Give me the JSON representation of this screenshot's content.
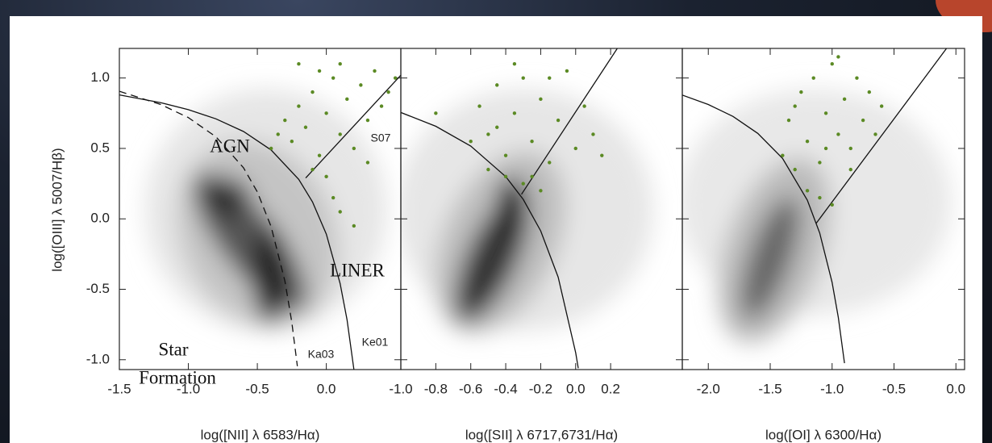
{
  "chart_data": [
    {
      "type": "scatter",
      "y_label": "log([OIII] λ 5007/Hβ)",
      "x_label": "log([NII] λ 6583/Hα)",
      "xlim": [
        -1.5,
        0.54
      ],
      "ylim": [
        -1.07,
        1.21
      ],
      "xticks": [
        -1.5,
        {
          "value": -1.0,
          "label": "-1.0"
        },
        -0.5,
        {
          "value": 0,
          "label": "0.0"
        }
      ],
      "yticks": [
        {
          "value": -1.0,
          "label": "-1.0"
        },
        -0.5,
        {
          "value": 0,
          "label": "0.0"
        },
        0.5,
        {
          "value": 1.0,
          "label": "1.0"
        }
      ],
      "series": [
        {
          "color": "#5b8a24",
          "x": [
            -0.35,
            -0.3,
            -0.25,
            -0.2,
            -0.15,
            -0.1,
            -0.05,
            0.0,
            0.05,
            0.1,
            0.15,
            0.2,
            0.25,
            0.3,
            0.35,
            0.4,
            0.45,
            -0.1,
            0.0,
            0.05,
            0.1,
            0.2,
            -0.2,
            -0.4,
            0.5,
            0.1,
            -0.05,
            0.3
          ],
          "values": [
            0.6,
            0.7,
            0.55,
            0.8,
            0.65,
            0.9,
            0.45,
            0.75,
            1.0,
            0.6,
            0.85,
            0.5,
            0.95,
            0.7,
            1.05,
            0.8,
            0.9,
            0.35,
            0.3,
            0.15,
            0.05,
            -0.05,
            1.1,
            0.5,
            1.0,
            1.1,
            1.05,
            0.4
          ]
        }
      ],
      "curves": [
        {
          "label": "Ke01",
          "style": "solid",
          "x": [
            -1.5,
            -1.2,
            -1.0,
            -0.8,
            -0.6,
            -0.4,
            -0.2,
            -0.1,
            0.0,
            0.1,
            0.15,
            0.2
          ],
          "y": [
            0.88,
            0.825,
            0.775,
            0.71,
            0.62,
            0.489,
            0.28,
            0.12,
            -0.108,
            -0.459,
            -0.716,
            -1.069
          ]
        },
        {
          "label": "Ka03",
          "style": "dashed",
          "x": [
            -1.5,
            -1.2,
            -1.0,
            -0.8,
            -0.6,
            -0.5,
            -0.4,
            -0.3,
            -0.25,
            -0.21
          ],
          "y": [
            0.906,
            0.812,
            0.719,
            0.582,
            0.362,
            0.191,
            -0.056,
            -0.443,
            -0.733,
            -1.046
          ]
        },
        {
          "label": "S07",
          "style": "solid",
          "x": [
            -0.15,
            0.54
          ],
          "y": [
            0.29,
            1.02
          ]
        }
      ],
      "annotations": [
        "AGN",
        "LINER",
        "Star",
        "Formation"
      ]
    },
    {
      "type": "scatter",
      "x_label": "log([SII] λ 6717,6731/Hα)",
      "xlim": [
        -1.0,
        0.61
      ],
      "ylim": [
        -1.07,
        1.21
      ],
      "xticks": [
        {
          "value": -1.0,
          "label": "-1.0"
        },
        -0.8,
        -0.6,
        -0.4,
        -0.2,
        {
          "value": 0,
          "label": "0.0"
        },
        0.2
      ],
      "yticks": [
        -1,
        -0.5,
        0,
        0.5,
        1
      ],
      "series": [
        {
          "color": "#5b8a24",
          "x": [
            -0.55,
            -0.5,
            -0.45,
            -0.4,
            -0.35,
            -0.3,
            -0.25,
            -0.2,
            -0.15,
            -0.1,
            -0.05,
            0.0,
            0.05,
            0.1,
            -0.4,
            -0.3,
            -0.2,
            -0.45,
            -0.35,
            -0.6,
            -0.25,
            0.15,
            -0.15,
            -0.5,
            -0.8
          ],
          "values": [
            0.8,
            0.6,
            0.95,
            0.45,
            0.75,
            1.0,
            0.55,
            0.85,
            0.4,
            0.7,
            1.05,
            0.5,
            0.8,
            0.6,
            0.3,
            0.25,
            0.2,
            0.65,
            1.1,
            0.55,
            0.3,
            0.45,
            1.0,
            0.35,
            0.75
          ]
        }
      ],
      "curves": [
        {
          "style": "solid",
          "x": [
            -1.0,
            -0.8,
            -0.6,
            -0.4,
            -0.3,
            -0.2,
            -0.1,
            0.0,
            0.015
          ],
          "y": [
            0.755,
            0.657,
            0.517,
            0.3,
            0.139,
            -0.085,
            -0.414,
            -0.95,
            -1.06
          ]
        },
        {
          "style": "solid",
          "x": [
            -0.31,
            0.238
          ],
          "y": [
            0.174,
            1.21
          ]
        }
      ]
    },
    {
      "type": "scatter",
      "x_label": "log([OI] λ 6300/Hα)",
      "xlim": [
        -2.21,
        0.07
      ],
      "ylim": [
        -1.07,
        1.21
      ],
      "xticks": [
        {
          "value": -2.0,
          "label": "-2.0"
        },
        -1.5,
        {
          "value": -1.0,
          "label": "-1.0"
        },
        -0.5,
        {
          "value": 0,
          "label": "0.0"
        }
      ],
      "yticks": [
        -1,
        -0.5,
        0,
        0.5,
        1
      ],
      "series": [
        {
          "color": "#5b8a24",
          "x": [
            -1.4,
            -1.35,
            -1.3,
            -1.25,
            -1.2,
            -1.15,
            -1.1,
            -1.05,
            -1.0,
            -0.95,
            -0.9,
            -0.85,
            -0.8,
            -0.75,
            -0.7,
            -0.65,
            -1.2,
            -1.1,
            -1.0,
            -0.95,
            -1.3,
            -0.85,
            -1.05,
            -0.6
          ],
          "values": [
            0.45,
            0.7,
            0.35,
            0.9,
            0.55,
            1.0,
            0.4,
            0.75,
            1.1,
            0.6,
            0.85,
            0.5,
            1.0,
            0.7,
            0.9,
            0.6,
            0.2,
            0.15,
            0.1,
            1.15,
            0.8,
            0.35,
            0.5,
            0.8
          ]
        }
      ],
      "curves": [
        {
          "style": "solid",
          "x": [
            -2.21,
            -2.0,
            -1.8,
            -1.6,
            -1.4,
            -1.2,
            -1.1,
            -1.0,
            -0.95,
            -0.9
          ],
          "y": [
            0.879,
            0.812,
            0.727,
            0.607,
            0.429,
            0.133,
            -0.101,
            -0.45,
            -0.698,
            -1.025
          ]
        },
        {
          "style": "solid",
          "x": [
            -1.13,
            -0.076
          ],
          "y": [
            -0.033,
            1.21
          ]
        }
      ]
    }
  ]
}
